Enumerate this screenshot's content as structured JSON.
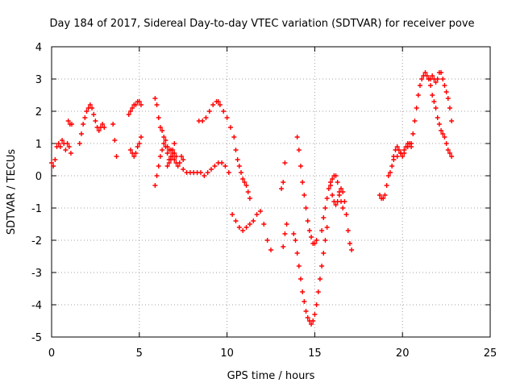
{
  "chart_data": {
    "type": "scatter",
    "title": "Day 184 of 2017, Sidereal Day-to-day VTEC variation (SDTVAR) for receiver pove",
    "xlabel": "GPS time / hours",
    "ylabel": "SDTVAR / TECUs",
    "xlim": [
      0,
      25
    ],
    "ylim": [
      -5,
      4
    ],
    "xticks": [
      "0",
      "5",
      "10",
      "15",
      "20",
      "25"
    ],
    "yticks": [
      "-5",
      "-4",
      "-3",
      "-2",
      "-1",
      "0",
      "1",
      "2",
      "3",
      "4"
    ],
    "grid": true,
    "marker": "+",
    "color": "#ff0000",
    "series": [
      {
        "x": [
          0.0,
          0.1,
          0.2,
          0.3,
          0.4,
          0.5,
          0.6,
          0.7,
          0.8,
          0.9,
          1.0,
          1.1
        ],
        "y": [
          0.4,
          0.3,
          0.5,
          0.9,
          1.0,
          0.9,
          1.1,
          1.0,
          0.8,
          1.0,
          0.9,
          0.7
        ]
      },
      {
        "x": [
          0.95,
          1.05,
          1.15
        ],
        "y": [
          1.7,
          1.6,
          1.6
        ]
      },
      {
        "x": [
          1.6,
          1.7,
          1.8,
          1.9,
          2.0,
          2.1,
          2.2,
          2.3,
          2.4,
          2.5,
          2.6,
          2.7,
          2.8,
          2.9,
          3.0
        ],
        "y": [
          1.0,
          1.3,
          1.6,
          1.8,
          2.0,
          2.1,
          2.2,
          2.1,
          1.9,
          1.7,
          1.5,
          1.4,
          1.5,
          1.6,
          1.5
        ]
      },
      {
        "x": [
          3.5,
          3.6,
          3.7
        ],
        "y": [
          1.6,
          1.1,
          0.6
        ]
      },
      {
        "x": [
          4.4,
          4.5,
          4.6,
          4.7,
          4.8,
          4.9,
          5.0,
          5.1
        ],
        "y": [
          1.9,
          2.0,
          2.1,
          2.2,
          2.2,
          2.3,
          2.3,
          2.2
        ]
      },
      {
        "x": [
          4.5,
          4.6,
          4.7,
          4.8,
          4.9,
          5.0,
          5.1
        ],
        "y": [
          0.8,
          0.7,
          0.6,
          0.7,
          0.9,
          1.0,
          1.2
        ]
      },
      {
        "x": [
          5.9,
          6.0,
          6.1,
          6.2,
          6.3,
          6.4,
          6.5,
          6.6,
          6.7,
          6.8,
          6.9,
          7.0,
          7.1
        ],
        "y": [
          2.4,
          2.2,
          1.8,
          1.5,
          1.4,
          1.2,
          1.1,
          0.9,
          0.8,
          0.8,
          0.7,
          0.7,
          0.6
        ]
      },
      {
        "x": [
          5.9,
          6.0,
          6.1,
          6.2,
          6.3,
          6.4,
          6.5,
          6.6,
          6.7,
          6.8,
          6.9,
          7.0
        ],
        "y": [
          -0.3,
          0.0,
          0.3,
          0.6,
          0.8,
          1.0,
          0.9,
          0.7,
          0.5,
          0.6,
          0.8,
          1.0
        ]
      },
      {
        "x": [
          6.6,
          6.7,
          6.8,
          6.9,
          7.0,
          7.1,
          7.2,
          7.3,
          7.4,
          7.5
        ],
        "y": [
          0.3,
          0.4,
          0.5,
          0.6,
          0.5,
          0.4,
          0.3,
          0.4,
          0.6,
          0.5
        ]
      },
      {
        "x": [
          7.5,
          7.7,
          7.9,
          8.1,
          8.3,
          8.5,
          8.7,
          8.9,
          9.1,
          9.3,
          9.5,
          9.7,
          9.9,
          10.1
        ],
        "y": [
          0.2,
          0.1,
          0.1,
          0.1,
          0.1,
          0.1,
          0.0,
          0.1,
          0.2,
          0.3,
          0.4,
          0.4,
          0.3,
          0.1
        ]
      },
      {
        "x": [
          8.4,
          8.6,
          8.8,
          9.0,
          9.2,
          9.4,
          9.5,
          9.6,
          9.8,
          10.0,
          10.2
        ],
        "y": [
          1.7,
          1.7,
          1.8,
          2.0,
          2.2,
          2.3,
          2.3,
          2.2,
          2.0,
          1.8,
          1.5
        ]
      },
      {
        "x": [
          10.4,
          10.5,
          10.6,
          10.7,
          10.8,
          10.9,
          11.0,
          11.1,
          11.2,
          11.3
        ],
        "y": [
          1.2,
          0.8,
          0.5,
          0.3,
          0.1,
          -0.1,
          -0.2,
          -0.3,
          -0.5,
          -0.7
        ]
      },
      {
        "x": [
          10.3,
          10.5,
          10.7,
          10.9,
          11.1,
          11.3,
          11.5,
          11.7,
          11.9,
          12.1,
          12.3,
          12.5
        ],
        "y": [
          -1.2,
          -1.4,
          -1.6,
          -1.7,
          -1.6,
          -1.5,
          -1.4,
          -1.2,
          -1.1,
          -1.5,
          -2.0,
          -2.3
        ]
      },
      {
        "x": [
          13.1,
          13.2,
          13.3
        ],
        "y": [
          -0.4,
          -0.2,
          0.4
        ]
      },
      {
        "x": [
          13.2,
          13.3,
          13.4
        ],
        "y": [
          -2.2,
          -1.8,
          -1.5
        ]
      },
      {
        "x": [
          13.8,
          13.9,
          14.0,
          14.1,
          14.2,
          14.3,
          14.4,
          14.5,
          14.6,
          14.7,
          14.8,
          14.9,
          15.0,
          15.1,
          15.2,
          15.3,
          15.4,
          15.5,
          15.6,
          15.7
        ],
        "y": [
          -1.8,
          -2.0,
          -2.4,
          -2.8,
          -3.2,
          -3.6,
          -3.9,
          -4.2,
          -4.4,
          -4.5,
          -4.6,
          -4.5,
          -4.3,
          -4.0,
          -3.6,
          -3.2,
          -2.8,
          -2.4,
          -2.0,
          -1.6
        ]
      },
      {
        "x": [
          14.0,
          14.1,
          14.2,
          14.3,
          14.4,
          14.5,
          14.6,
          14.7,
          14.8,
          14.9,
          15.0,
          15.1
        ],
        "y": [
          1.2,
          0.8,
          0.3,
          -0.2,
          -0.6,
          -1.0,
          -1.4,
          -1.7,
          -1.9,
          -2.1,
          -2.1,
          -2.0
        ]
      },
      {
        "x": [
          15.4,
          15.5,
          15.6,
          15.7,
          15.8,
          15.9,
          16.0,
          16.1,
          16.2,
          16.3,
          16.4,
          16.5,
          16.6
        ],
        "y": [
          -1.7,
          -1.3,
          -1.0,
          -0.7,
          -0.4,
          -0.2,
          -0.1,
          0.0,
          0.0,
          -0.2,
          -0.5,
          -0.8,
          -1.0
        ]
      },
      {
        "x": [
          15.9,
          16.0,
          16.1,
          16.2,
          16.3,
          16.4,
          16.5,
          16.6,
          16.7,
          16.8,
          16.9,
          17.0,
          17.1
        ],
        "y": [
          -0.3,
          -0.6,
          -0.8,
          -0.9,
          -0.8,
          -0.6,
          -0.4,
          -0.5,
          -0.8,
          -1.2,
          -1.7,
          -2.1,
          -2.3
        ]
      },
      {
        "x": [
          18.7,
          18.8,
          18.9,
          19.0,
          19.1,
          19.2,
          19.3,
          19.4,
          19.5,
          19.6,
          19.7,
          19.8,
          19.9,
          20.0,
          20.1,
          20.2,
          20.3,
          20.4,
          20.5,
          20.6,
          20.7,
          20.8,
          20.9,
          21.0,
          21.1,
          21.2,
          21.3,
          21.4,
          21.5
        ],
        "y": [
          -0.6,
          -0.7,
          -0.7,
          -0.6,
          -0.3,
          0.0,
          0.1,
          0.3,
          0.6,
          0.8,
          0.9,
          0.8,
          0.7,
          0.6,
          0.7,
          0.9,
          1.0,
          1.0,
          1.0,
          1.3,
          1.7,
          2.1,
          2.5,
          2.8,
          3.0,
          3.1,
          3.2,
          3.1,
          3.0
        ]
      },
      {
        "x": [
          19.5,
          19.7,
          19.9,
          20.1,
          20.3,
          20.5
        ],
        "y": [
          0.5,
          0.6,
          0.7,
          0.8,
          0.9,
          0.9
        ]
      },
      {
        "x": [
          21.5,
          21.6,
          21.7,
          21.8,
          21.9,
          22.0,
          22.1,
          22.2,
          22.3,
          22.4,
          22.5,
          22.6,
          22.7,
          22.8
        ],
        "y": [
          3.0,
          2.8,
          2.5,
          2.3,
          2.1,
          1.8,
          1.6,
          1.4,
          1.3,
          1.2,
          1.0,
          0.8,
          0.7,
          0.6
        ]
      },
      {
        "x": [
          21.6,
          21.7,
          21.8,
          21.9,
          22.0,
          22.1,
          22.2,
          22.3,
          22.4,
          22.5,
          22.6,
          22.7,
          22.8
        ],
        "y": [
          3.0,
          3.1,
          3.0,
          2.9,
          3.0,
          3.2,
          3.2,
          3.0,
          2.8,
          2.6,
          2.4,
          2.1,
          1.7
        ]
      }
    ]
  }
}
